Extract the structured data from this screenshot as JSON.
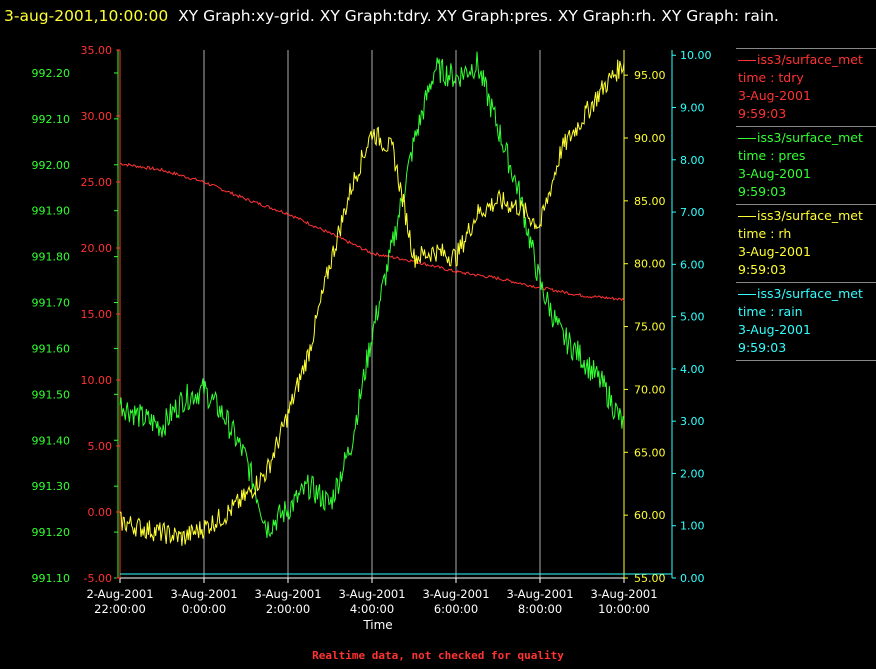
{
  "title": {
    "timestamp": "3-aug-2001,10:00:00",
    "text": "XY Graph:xy-grid.  XY Graph:tdry.  XY Graph:pres.  XY Graph:rh.  XY Graph: rain."
  },
  "footnote": "Realtime data, not checked for quality",
  "colors": {
    "background": "#000000",
    "tdry": "#ff3333",
    "pres": "#33ff33",
    "rh": "#ffff33",
    "rain": "#33ffff",
    "grid": "#ffffff"
  },
  "legend": [
    {
      "series": "iss3/surface_met",
      "var": "time : tdry",
      "date": "3-Aug-2001",
      "time": "9:59:03",
      "color": "#ff3333"
    },
    {
      "series": "iss3/surface_met",
      "var": "time : pres",
      "date": "3-Aug-2001",
      "time": "9:59:03",
      "color": "#33ff33"
    },
    {
      "series": "iss3/surface_met",
      "var": "time : rh",
      "date": "3-Aug-2001",
      "time": "9:59:03",
      "color": "#ffff33"
    },
    {
      "series": "iss3/surface_met",
      "var": "time : rain",
      "date": "3-Aug-2001",
      "time": "9:59:03",
      "color": "#33ffff"
    }
  ],
  "chart_data": {
    "type": "line",
    "xlabel": "Time",
    "x_ticks": [
      {
        "d": "2-Aug-2001",
        "t": "22:00:00"
      },
      {
        "d": "3-Aug-2001",
        "t": "0:00:00"
      },
      {
        "d": "3-Aug-2001",
        "t": "2:00:00"
      },
      {
        "d": "3-Aug-2001",
        "t": "4:00:00"
      },
      {
        "d": "3-Aug-2001",
        "t": "6:00:00"
      },
      {
        "d": "3-Aug-2001",
        "t": "8:00:00"
      },
      {
        "d": "3-Aug-2001",
        "t": "10:00:00"
      }
    ],
    "x_unit": "hours since 2-Aug-2001 22:00",
    "xlim": [
      0,
      12
    ],
    "grid": "vertical lines at x ticks",
    "axes": {
      "pres": {
        "side": "left-outer",
        "ylim": [
          991.1,
          992.25
        ],
        "ticks": [
          "991.10",
          "991.20",
          "991.30",
          "991.40",
          "991.50",
          "991.60",
          "991.70",
          "991.80",
          "991.90",
          "992.00",
          "992.10",
          "992.20"
        ]
      },
      "tdry": {
        "side": "left-inner",
        "ylim": [
          -5,
          35
        ],
        "ticks": [
          "-5.00",
          "0.00",
          "5.00",
          "10.00",
          "15.00",
          "20.00",
          "25.00",
          "30.00",
          "35.00"
        ]
      },
      "rh": {
        "side": "right-inner",
        "ylim": [
          55,
          97
        ],
        "ticks": [
          "55.00",
          "60.00",
          "65.00",
          "70.00",
          "75.00",
          "80.00",
          "85.00",
          "90.00",
          "95.00"
        ]
      },
      "rain": {
        "side": "right-outer",
        "ylim": [
          0,
          10.1
        ],
        "ticks": [
          "0.00",
          "1.00",
          "2.00",
          "3.00",
          "4.00",
          "5.00",
          "6.00",
          "7.00",
          "8.00",
          "9.00",
          "10.00"
        ]
      }
    },
    "series": [
      {
        "name": "tdry",
        "axis": "tdry",
        "x": [
          0,
          1,
          2,
          3,
          4,
          5,
          6,
          7,
          8,
          9,
          10,
          11,
          12
        ],
        "y": [
          26.4,
          25.9,
          25.0,
          23.7,
          22.6,
          21.1,
          19.6,
          19.0,
          18.2,
          17.7,
          17.0,
          16.4,
          16.1
        ]
      },
      {
        "name": "pres",
        "axis": "pres",
        "x": [
          0,
          0.5,
          1,
          1.5,
          2,
          2.5,
          3,
          3.5,
          4,
          4.5,
          5,
          5.5,
          6,
          6.5,
          7,
          7.5,
          8,
          8.5,
          9,
          9.5,
          10,
          10.5,
          11,
          11.5,
          12
        ],
        "y": [
          991.48,
          991.45,
          991.43,
          991.49,
          991.51,
          991.45,
          991.36,
          991.21,
          991.25,
          991.3,
          991.26,
          991.39,
          991.63,
          991.83,
          992.05,
          992.21,
          992.19,
          992.22,
          992.08,
          991.94,
          991.74,
          991.63,
          991.58,
          991.52,
          991.43
        ]
      },
      {
        "name": "rh",
        "axis": "rh",
        "x": [
          0,
          0.5,
          1,
          1.5,
          2,
          2.5,
          3,
          3.5,
          4,
          4.5,
          5,
          5.5,
          6,
          6.5,
          7,
          7.5,
          8,
          8.5,
          9,
          9.5,
          10,
          10.5,
          11,
          11.5,
          12
        ],
        "y": [
          59.5,
          59.0,
          58.6,
          58.2,
          59.0,
          60.0,
          61.5,
          63.5,
          68.0,
          73.0,
          80.0,
          86.0,
          90.5,
          89.0,
          80.5,
          81.0,
          80.5,
          84.0,
          85.0,
          84.5,
          83.0,
          89.0,
          91.5,
          94.0,
          96.0
        ]
      },
      {
        "name": "rain",
        "axis": "rain",
        "x": [
          0,
          12
        ],
        "y": [
          0.0,
          0.0
        ]
      }
    ]
  }
}
